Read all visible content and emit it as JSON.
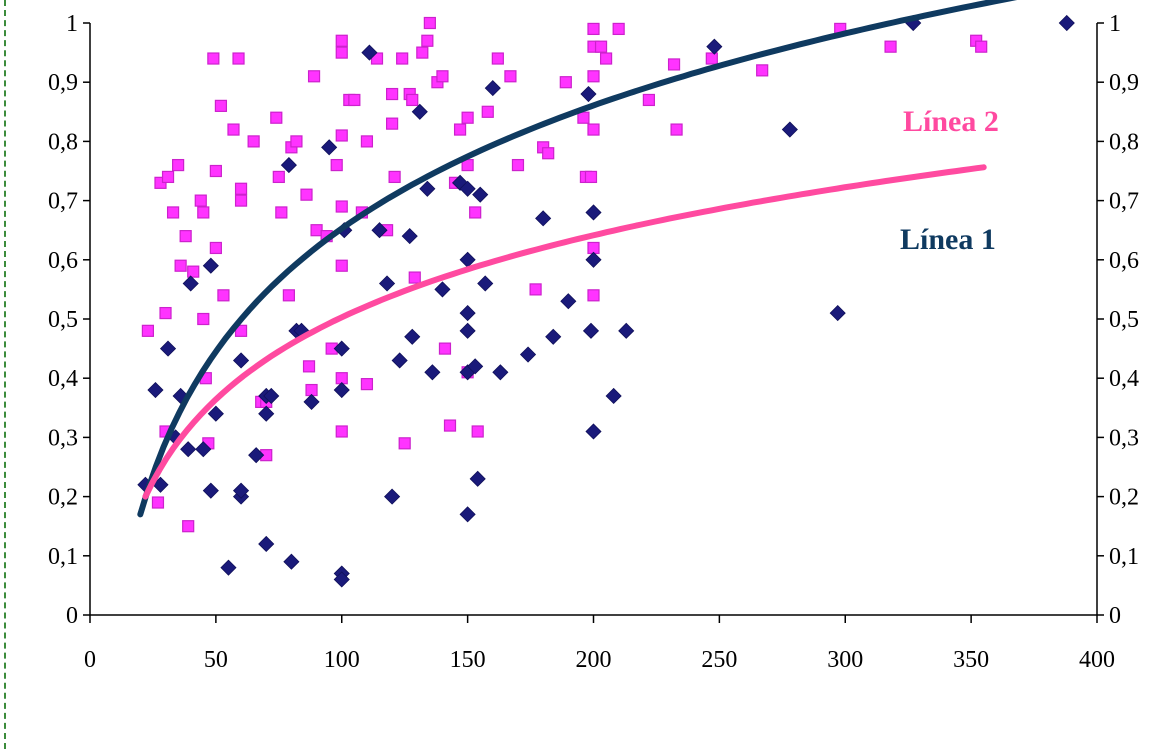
{
  "chart_data": {
    "type": "scatter",
    "title": "",
    "xlabel": "",
    "ylabel": "",
    "xlim": [
      0,
      400
    ],
    "ylim": [
      0,
      1
    ],
    "x_ticks": [
      "0",
      "50",
      "100",
      "150",
      "200",
      "250",
      "300",
      "350",
      "400"
    ],
    "y_ticks": [
      "0",
      "0,1",
      "0,2",
      "0,3",
      "0,4",
      "0,5",
      "0,6",
      "0,7",
      "0,8",
      "0,9",
      "1"
    ],
    "grid": false,
    "secondary_y_axis": true,
    "colors": {
      "series1": "#1a1a7a",
      "series2": "#ff33ff",
      "curve1": "#0f3a60",
      "curve2": "#ff4aa0"
    },
    "series": [
      {
        "marker": "diamond",
        "points": [
          [
            22,
            0.22
          ],
          [
            26,
            0.38
          ],
          [
            28,
            0.22
          ],
          [
            31,
            0.45
          ],
          [
            34,
            0.3
          ],
          [
            36,
            0.37
          ],
          [
            39,
            0.28
          ],
          [
            40,
            0.56
          ],
          [
            45,
            0.28
          ],
          [
            48,
            0.59
          ],
          [
            48,
            0.21
          ],
          [
            50,
            0.34
          ],
          [
            55,
            0.08
          ],
          [
            60,
            0.2
          ],
          [
            60,
            0.21
          ],
          [
            60,
            0.43
          ],
          [
            66,
            0.27
          ],
          [
            70,
            0.37
          ],
          [
            70,
            0.34
          ],
          [
            70,
            0.12
          ],
          [
            72,
            0.37
          ],
          [
            79,
            0.76
          ],
          [
            80,
            0.09
          ],
          [
            82,
            0.48
          ],
          [
            84,
            0.48
          ],
          [
            88,
            0.36
          ],
          [
            95,
            0.79
          ],
          [
            100,
            0.45
          ],
          [
            100,
            0.38
          ],
          [
            100,
            0.07
          ],
          [
            100,
            0.06
          ],
          [
            101,
            0.65
          ],
          [
            111,
            0.95
          ],
          [
            115,
            0.65
          ],
          [
            118,
            0.56
          ],
          [
            120,
            0.2
          ],
          [
            123,
            0.43
          ],
          [
            127,
            0.64
          ],
          [
            128,
            0.47
          ],
          [
            131,
            0.85
          ],
          [
            134,
            0.72
          ],
          [
            136,
            0.41
          ],
          [
            140,
            0.55
          ],
          [
            147,
            0.73
          ],
          [
            150,
            0.72
          ],
          [
            150,
            0.6
          ],
          [
            150,
            0.51
          ],
          [
            150,
            0.48
          ],
          [
            150,
            0.41
          ],
          [
            150,
            0.17
          ],
          [
            153,
            0.42
          ],
          [
            154,
            0.23
          ],
          [
            155,
            0.71
          ],
          [
            157,
            0.56
          ],
          [
            160,
            0.89
          ],
          [
            163,
            0.41
          ],
          [
            174,
            0.44
          ],
          [
            180,
            0.67
          ],
          [
            184,
            0.47
          ],
          [
            190,
            0.53
          ],
          [
            198,
            0.88
          ],
          [
            199,
            0.48
          ],
          [
            200,
            0.68
          ],
          [
            200,
            0.6
          ],
          [
            200,
            0.31
          ],
          [
            208,
            0.37
          ],
          [
            213,
            0.48
          ],
          [
            248,
            0.96
          ],
          [
            278,
            0.82
          ],
          [
            297,
            0.51
          ],
          [
            327,
            1.0
          ],
          [
            388,
            1.0
          ]
        ]
      },
      {
        "marker": "square",
        "points": [
          [
            23,
            0.48
          ],
          [
            27,
            0.19
          ],
          [
            28,
            0.73
          ],
          [
            30,
            0.51
          ],
          [
            30,
            0.31
          ],
          [
            31,
            0.74
          ],
          [
            33,
            0.68
          ],
          [
            35,
            0.76
          ],
          [
            36,
            0.59
          ],
          [
            38,
            0.64
          ],
          [
            39,
            0.15
          ],
          [
            41,
            0.58
          ],
          [
            44,
            0.7
          ],
          [
            45,
            0.68
          ],
          [
            45,
            0.5
          ],
          [
            46,
            0.4
          ],
          [
            47,
            0.29
          ],
          [
            49,
            0.94
          ],
          [
            50,
            0.75
          ],
          [
            50,
            0.62
          ],
          [
            52,
            0.86
          ],
          [
            53,
            0.54
          ],
          [
            57,
            0.82
          ],
          [
            59,
            0.94
          ],
          [
            60,
            0.7
          ],
          [
            60,
            0.72
          ],
          [
            60,
            0.48
          ],
          [
            65,
            0.8
          ],
          [
            68,
            0.36
          ],
          [
            70,
            0.36
          ],
          [
            70,
            0.27
          ],
          [
            74,
            0.84
          ],
          [
            75,
            0.74
          ],
          [
            76,
            0.68
          ],
          [
            79,
            0.54
          ],
          [
            80,
            0.79
          ],
          [
            82,
            0.8
          ],
          [
            86,
            0.71
          ],
          [
            87,
            0.42
          ],
          [
            88,
            0.38
          ],
          [
            89,
            0.91
          ],
          [
            90,
            0.65
          ],
          [
            94,
            0.64
          ],
          [
            96,
            0.45
          ],
          [
            98,
            0.76
          ],
          [
            100,
            0.97
          ],
          [
            100,
            0.95
          ],
          [
            100,
            0.81
          ],
          [
            100,
            0.69
          ],
          [
            100,
            0.59
          ],
          [
            100,
            0.4
          ],
          [
            100,
            0.31
          ],
          [
            103,
            0.87
          ],
          [
            105,
            0.87
          ],
          [
            108,
            0.68
          ],
          [
            110,
            0.39
          ],
          [
            110,
            0.8
          ],
          [
            114,
            0.94
          ],
          [
            118,
            0.65
          ],
          [
            120,
            0.88
          ],
          [
            120,
            0.83
          ],
          [
            121,
            0.74
          ],
          [
            124,
            0.94
          ],
          [
            125,
            0.29
          ],
          [
            127,
            0.88
          ],
          [
            128,
            0.87
          ],
          [
            129,
            0.57
          ],
          [
            132,
            0.95
          ],
          [
            134,
            0.97
          ],
          [
            135,
            1.0
          ],
          [
            138,
            0.9
          ],
          [
            140,
            0.91
          ],
          [
            141,
            0.45
          ],
          [
            143,
            0.32
          ],
          [
            145,
            0.73
          ],
          [
            147,
            0.82
          ],
          [
            150,
            0.76
          ],
          [
            150,
            0.84
          ],
          [
            150,
            0.41
          ],
          [
            153,
            0.68
          ],
          [
            154,
            0.31
          ],
          [
            158,
            0.85
          ],
          [
            162,
            0.94
          ],
          [
            167,
            0.91
          ],
          [
            170,
            0.76
          ],
          [
            177,
            0.55
          ],
          [
            180,
            0.79
          ],
          [
            182,
            0.78
          ],
          [
            189,
            0.9
          ],
          [
            196,
            0.84
          ],
          [
            197,
            0.74
          ],
          [
            199,
            0.74
          ],
          [
            200,
            0.99
          ],
          [
            200,
            0.96
          ],
          [
            200,
            0.91
          ],
          [
            200,
            0.82
          ],
          [
            200,
            0.62
          ],
          [
            200,
            0.54
          ],
          [
            203,
            0.96
          ],
          [
            205,
            0.94
          ],
          [
            210,
            0.99
          ],
          [
            222,
            0.87
          ],
          [
            232,
            0.93
          ],
          [
            233,
            0.82
          ],
          [
            247,
            0.94
          ],
          [
            267,
            0.92
          ],
          [
            298,
            0.99
          ],
          [
            318,
            0.96
          ],
          [
            352,
            0.97
          ],
          [
            354,
            0.96
          ]
        ]
      }
    ],
    "trendlines": [
      {
        "label": "Línea 1",
        "x_range": [
          20,
          390
        ],
        "model": "logarithmic",
        "a": 0.17,
        "b": 0.3
      },
      {
        "label": "Línea 2",
        "x_range": [
          22,
          355
        ],
        "model": "logarithmic",
        "a": 0.2,
        "b": 0.2
      }
    ]
  }
}
